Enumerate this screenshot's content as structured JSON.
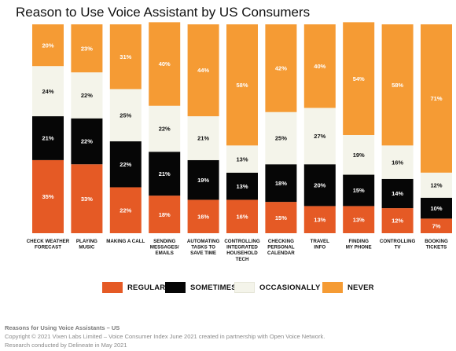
{
  "chart_data": {
    "type": "bar",
    "stacked": true,
    "title": "Reason to Use Voice Assistant by US Consumers",
    "ylim": [
      0,
      100
    ],
    "legend_position": "bottom",
    "grid": false,
    "categories": [
      [
        "CHECK WEATHER",
        "FORECAST"
      ],
      [
        "PLAYING",
        "MUSIC"
      ],
      [
        "MAKING A CALL"
      ],
      [
        "SENDING",
        "MESSAGES/",
        "EMAILS"
      ],
      [
        "AUTOMATING",
        "TASKS TO",
        "SAVE TIME"
      ],
      [
        "CONTROLLING",
        "INTEGRATED",
        "HOUSEHOLD",
        "TECH"
      ],
      [
        "CHECKING",
        "PERSONAL",
        "CALENDAR"
      ],
      [
        "TRAVEL",
        "INFO"
      ],
      [
        "FINDING",
        "MY PHONE"
      ],
      [
        "CONTROLLING",
        "TV"
      ],
      [
        "BOOKING",
        "TICKETS"
      ]
    ],
    "series": [
      {
        "name": "REGULARLY",
        "color": "#e55a25",
        "text_color": "#ffffff",
        "values": [
          35,
          33,
          22,
          18,
          16,
          16,
          15,
          13,
          13,
          12,
          7
        ]
      },
      {
        "name": "SOMETIMES",
        "color": "#060606",
        "text_color": "#ffffff",
        "values": [
          21,
          22,
          22,
          21,
          19,
          13,
          18,
          20,
          15,
          14,
          10
        ]
      },
      {
        "name": "OCCASIONALLY",
        "color": "#f4f4ea",
        "text_color": "#111111",
        "values": [
          24,
          22,
          25,
          22,
          21,
          13,
          25,
          27,
          19,
          16,
          12
        ]
      },
      {
        "name": "NEVER",
        "color": "#f59b34",
        "text_color": "#ffffff",
        "values": [
          20,
          23,
          31,
          40,
          44,
          58,
          42,
          40,
          54,
          58,
          71
        ]
      }
    ]
  },
  "footer": {
    "title": "Reasons for Using Voice Assistants – US",
    "copyright": "Copyright © 2021 Vixen Labs Limited – Voice Consumer Index June 2021 created in partnership with Open Voice Network.",
    "research": "Research conducted by Delineate in May 2021"
  }
}
